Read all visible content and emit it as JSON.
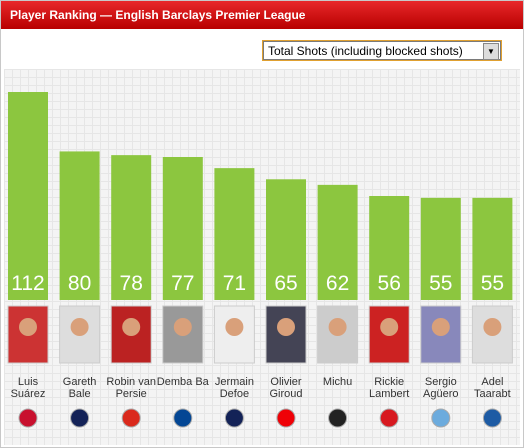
{
  "chart_data": {
    "type": "bar",
    "title": "Player Ranking — English Barclays Premier League",
    "selector": "Total Shots (including blocked shots)",
    "categories": [
      "Luis Suárez",
      "Gareth Bale",
      "Robin van Persie",
      "Demba Ba",
      "Jermain Defoe",
      "Olivier Giroud",
      "Michu",
      "Rickie Lambert",
      "Sergio Agüero",
      "Adel Taarabt"
    ],
    "values": [
      112,
      80,
      78,
      77,
      71,
      65,
      62,
      56,
      55,
      55
    ],
    "color": "#8cc63f"
  }
}
